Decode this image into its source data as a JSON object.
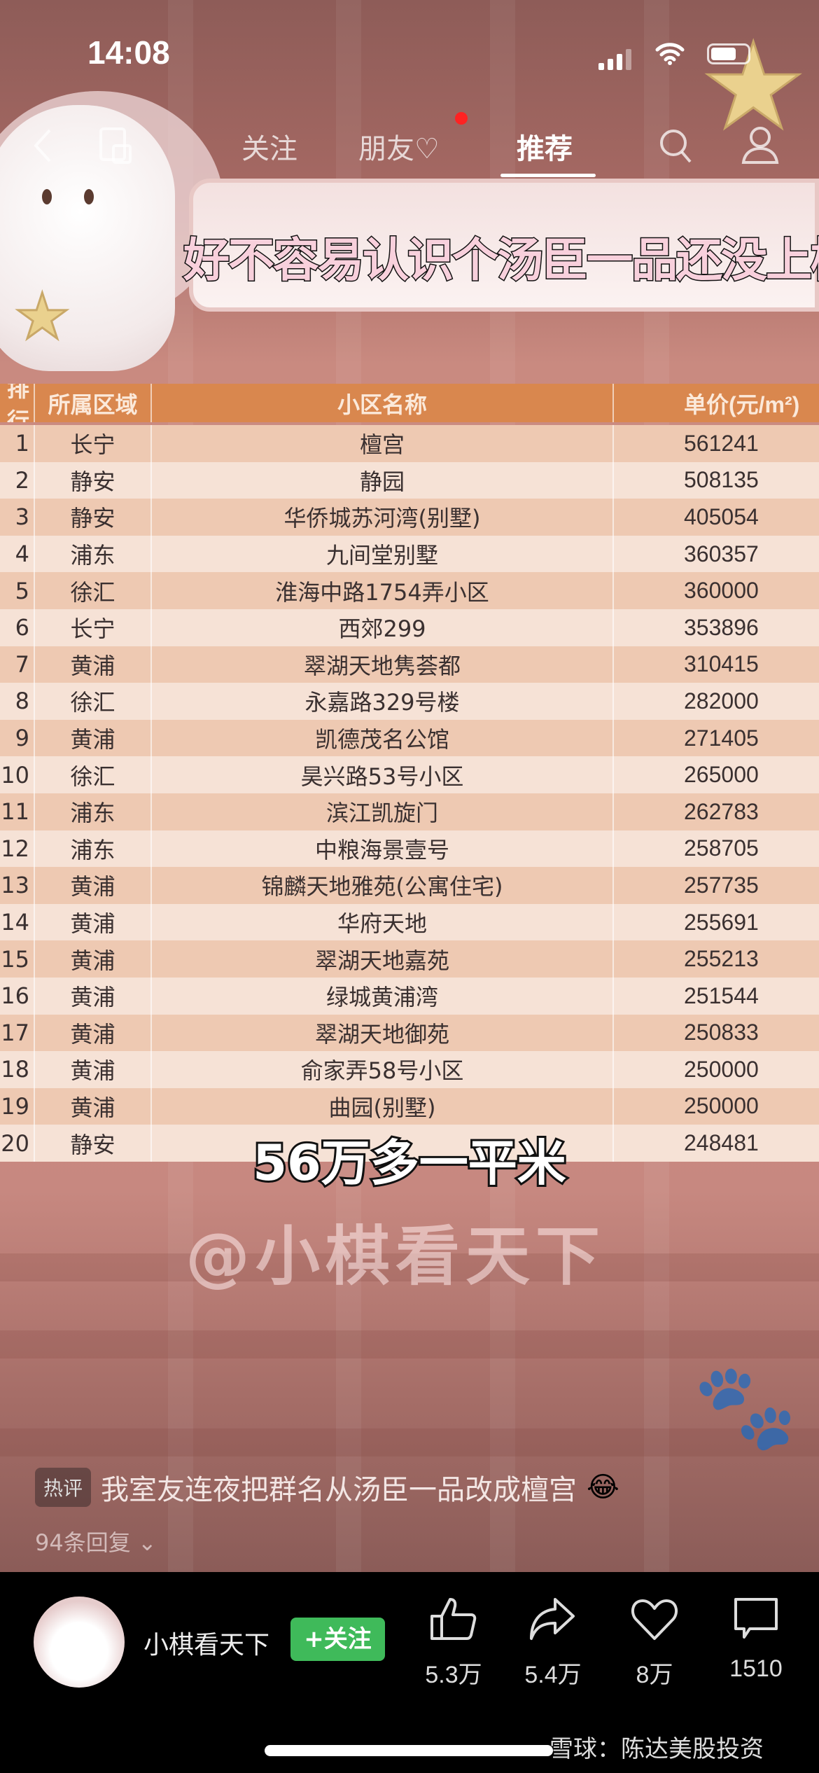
{
  "status_bar": {
    "time": "14:08"
  },
  "nav": {
    "tabs": [
      {
        "label": "关注"
      },
      {
        "label": "朋友♡"
      },
      {
        "label": "推荐"
      }
    ],
    "active": "推荐",
    "notification_dot_color": "#ff2222"
  },
  "video": {
    "banner_title": "好不容易认识个汤臣一品还没上榜",
    "table": {
      "headers": [
        "排行",
        "所属区域",
        "小区名称",
        "单价(元/m²)"
      ],
      "rows": [
        [
          "1",
          "长宁",
          "檀宫",
          "561241"
        ],
        [
          "2",
          "静安",
          "静园",
          "508135"
        ],
        [
          "3",
          "静安",
          "华侨城苏河湾(别墅)",
          "405054"
        ],
        [
          "4",
          "浦东",
          "九间堂别墅",
          "360357"
        ],
        [
          "5",
          "徐汇",
          "淮海中路1754弄小区",
          "360000"
        ],
        [
          "6",
          "长宁",
          "西郊299",
          "353896"
        ],
        [
          "7",
          "黄浦",
          "翠湖天地隽荟都",
          "310415"
        ],
        [
          "8",
          "徐汇",
          "永嘉路329号楼",
          "282000"
        ],
        [
          "9",
          "黄浦",
          "凯德茂名公馆",
          "271405"
        ],
        [
          "10",
          "徐汇",
          "昊兴路53号小区",
          "265000"
        ],
        [
          "11",
          "浦东",
          "滨江凯旋门",
          "262783"
        ],
        [
          "12",
          "浦东",
          "中粮海景壹号",
          "258705"
        ],
        [
          "13",
          "黄浦",
          "锦麟天地雅苑(公寓住宅)",
          "257735"
        ],
        [
          "14",
          "黄浦",
          "华府天地",
          "255691"
        ],
        [
          "15",
          "黄浦",
          "翠湖天地嘉苑",
          "255213"
        ],
        [
          "16",
          "黄浦",
          "绿城黄浦湾",
          "251544"
        ],
        [
          "17",
          "黄浦",
          "翠湖天地御苑",
          "250833"
        ],
        [
          "18",
          "黄浦",
          "俞家弄58号小区",
          "250000"
        ],
        [
          "19",
          "黄浦",
          "曲园(别墅)",
          "250000"
        ],
        [
          "20",
          "静安",
          "",
          "248481"
        ]
      ]
    },
    "caption": "56万多一平米",
    "watermark": "@小棋看天下"
  },
  "comment": {
    "badge": "热评",
    "text": "我室友连夜把群名从汤臣一品改成檀宫",
    "emoji": "😂",
    "replies": "94条回复"
  },
  "bottom": {
    "author": "小棋看天下",
    "follow_label": "+关注",
    "likes": "5.3万",
    "shares": "5.4万",
    "favorites": "8万",
    "comments": "1510",
    "follow_color": "#3fba5a"
  },
  "source_watermark": "雪球：陈达美股投资"
}
